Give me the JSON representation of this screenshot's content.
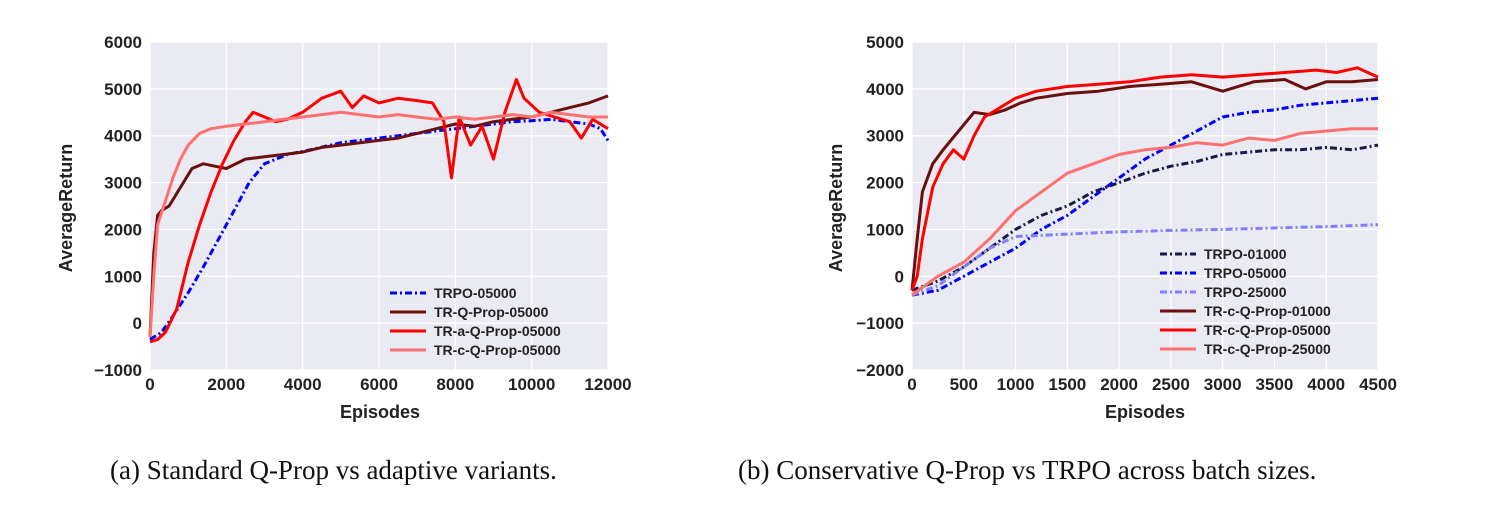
{
  "captions": {
    "a": "(a) Standard Q-Prop vs adaptive variants.",
    "b": "(b) Conservative Q-Prop vs TRPO across batch sizes."
  },
  "chart_data": [
    {
      "type": "line",
      "xlabel": "Episodes",
      "ylabel": "AverageReturn",
      "xlim": [
        0,
        12000
      ],
      "ylim": [
        -1000,
        6000
      ],
      "xticks": [
        0,
        2000,
        4000,
        6000,
        8000,
        10000,
        12000
      ],
      "yticks": [
        -1000,
        0,
        1000,
        2000,
        3000,
        4000,
        5000,
        6000
      ],
      "xtick_labels": [
        "0",
        "2000",
        "4000",
        "6000",
        "8000",
        "10000",
        "12000"
      ],
      "ytick_labels": [
        "−1000",
        "0",
        "1000",
        "2000",
        "3000",
        "4000",
        "5000",
        "6000"
      ],
      "grid": true,
      "legend_position": "lower-right",
      "series": [
        {
          "name": "TRPO-05000",
          "color": "#0000ff",
          "style": "dashdot",
          "x": [
            0,
            300,
            600,
            1000,
            1400,
            1800,
            2200,
            2600,
            3000,
            3600,
            4200,
            5000,
            6000,
            7000,
            7500,
            8000,
            8500,
            9000,
            9500,
            10000,
            10500,
            11000,
            11500,
            11800,
            12000
          ],
          "y": [
            -350,
            -200,
            150,
            650,
            1200,
            1800,
            2400,
            3000,
            3400,
            3600,
            3700,
            3850,
            3950,
            4050,
            4100,
            4150,
            4200,
            4250,
            4300,
            4320,
            4350,
            4300,
            4250,
            4150,
            3900
          ]
        },
        {
          "name": "TR-Q-Prop-05000",
          "color": "#6b0f0f",
          "style": "solid",
          "x": [
            0,
            100,
            200,
            300,
            500,
            800,
            1100,
            1400,
            1700,
            2000,
            2500,
            3000,
            3500,
            4000,
            4500,
            5000,
            5500,
            6000,
            6500,
            7000,
            7500,
            8000,
            8500,
            9000,
            9500,
            10000,
            10500,
            11000,
            11500,
            12000
          ],
          "y": [
            -300,
            1500,
            2300,
            2400,
            2500,
            2900,
            3300,
            3400,
            3350,
            3300,
            3500,
            3550,
            3600,
            3650,
            3750,
            3800,
            3850,
            3900,
            3950,
            4050,
            4150,
            4250,
            4200,
            4300,
            4350,
            4400,
            4500,
            4600,
            4700,
            4850
          ]
        },
        {
          "name": "TR-a-Q-Prop-05000",
          "color": "#ff0000",
          "style": "solid",
          "x": [
            0,
            200,
            400,
            700,
            1000,
            1300,
            1600,
            1900,
            2200,
            2500,
            2700,
            3000,
            3300,
            3600,
            4000,
            4500,
            5000,
            5300,
            5600,
            6000,
            6500,
            7000,
            7400,
            7700,
            7900,
            8100,
            8400,
            8700,
            9000,
            9300,
            9600,
            9800,
            10200,
            10600,
            11000,
            11300,
            11600,
            12000
          ],
          "y": [
            -400,
            -350,
            -200,
            300,
            1300,
            2100,
            2800,
            3400,
            3900,
            4300,
            4500,
            4400,
            4300,
            4350,
            4500,
            4800,
            4950,
            4600,
            4850,
            4700,
            4800,
            4750,
            4700,
            4300,
            3100,
            4400,
            3800,
            4200,
            3500,
            4500,
            5200,
            4800,
            4500,
            4400,
            4300,
            3950,
            4350,
            4150
          ]
        },
        {
          "name": "TR-c-Q-Prop-05000",
          "color": "#ff7070",
          "style": "solid",
          "x": [
            0,
            100,
            200,
            400,
            600,
            800,
            1000,
            1300,
            1600,
            2000,
            2500,
            3000,
            3500,
            4000,
            4500,
            5000,
            5500,
            6000,
            6500,
            7000,
            7500,
            8000,
            8500,
            9000,
            9500,
            10000,
            10500,
            11000,
            11500,
            12000
          ],
          "y": [
            -300,
            1000,
            2100,
            2600,
            3100,
            3500,
            3800,
            4050,
            4150,
            4200,
            4250,
            4300,
            4350,
            4400,
            4450,
            4500,
            4450,
            4400,
            4450,
            4400,
            4350,
            4400,
            4350,
            4400,
            4450,
            4400,
            4500,
            4450,
            4400,
            4400
          ]
        }
      ]
    },
    {
      "type": "line",
      "xlabel": "Episodes",
      "ylabel": "AverageReturn",
      "xlim": [
        0,
        4500
      ],
      "ylim": [
        -2000,
        5000
      ],
      "xticks": [
        0,
        500,
        1000,
        1500,
        2000,
        2500,
        3000,
        3500,
        4000,
        4500
      ],
      "yticks": [
        -2000,
        -1000,
        0,
        1000,
        2000,
        3000,
        4000,
        5000
      ],
      "xtick_labels": [
        "0",
        "500",
        "1000",
        "1500",
        "2000",
        "2500",
        "3000",
        "3500",
        "4000",
        "4500"
      ],
      "ytick_labels": [
        "−2000",
        "−1000",
        "0",
        "1000",
        "2000",
        "3000",
        "4000",
        "5000"
      ],
      "grid": true,
      "legend_position": "lower-right",
      "series": [
        {
          "name": "TRPO-01000",
          "color": "#1a1a4a",
          "style": "dashdot",
          "x": [
            0,
            250,
            500,
            750,
            1000,
            1250,
            1500,
            1750,
            2000,
            2250,
            2500,
            2750,
            3000,
            3250,
            3500,
            3750,
            4000,
            4250,
            4500
          ],
          "y": [
            -300,
            -100,
            200,
            600,
            1000,
            1300,
            1500,
            1800,
            2000,
            2200,
            2350,
            2450,
            2600,
            2650,
            2700,
            2700,
            2750,
            2700,
            2800
          ]
        },
        {
          "name": "TRPO-05000",
          "color": "#0000ff",
          "style": "dashdot",
          "x": [
            0,
            250,
            500,
            750,
            1000,
            1250,
            1500,
            1750,
            2000,
            2250,
            2500,
            2750,
            3000,
            3250,
            3500,
            3750,
            4000,
            4250,
            4500
          ],
          "y": [
            -400,
            -300,
            0,
            300,
            600,
            1000,
            1300,
            1700,
            2100,
            2500,
            2800,
            3100,
            3400,
            3500,
            3550,
            3650,
            3700,
            3750,
            3800
          ]
        },
        {
          "name": "TRPO-25000",
          "color": "#8080ff",
          "style": "dashdot",
          "x": [
            0,
            250,
            500,
            750,
            1000,
            1500,
            2000,
            2500,
            3000,
            3500,
            4000,
            4500
          ],
          "y": [
            -400,
            -200,
            200,
            600,
            850,
            900,
            950,
            980,
            1000,
            1030,
            1060,
            1100
          ]
        },
        {
          "name": "TR-c-Q-Prop-01000",
          "color": "#6b0f0f",
          "style": "solid",
          "x": [
            0,
            50,
            100,
            200,
            300,
            450,
            600,
            750,
            900,
            1050,
            1200,
            1500,
            1800,
            2100,
            2400,
            2700,
            3000,
            3300,
            3600,
            3800,
            4000,
            4250,
            4500
          ],
          "y": [
            -300,
            800,
            1800,
            2400,
            2700,
            3100,
            3500,
            3450,
            3550,
            3700,
            3800,
            3900,
            3950,
            4050,
            4100,
            4150,
            3950,
            4150,
            4200,
            4000,
            4150,
            4150,
            4200
          ]
        },
        {
          "name": "TR-c-Q-Prop-05000",
          "color": "#ff0000",
          "style": "solid",
          "x": [
            0,
            50,
            100,
            200,
            300,
            400,
            500,
            600,
            700,
            850,
            1000,
            1200,
            1500,
            1800,
            2100,
            2400,
            2700,
            3000,
            3300,
            3600,
            3900,
            4100,
            4300,
            4500
          ],
          "y": [
            -300,
            0,
            800,
            1900,
            2400,
            2700,
            2500,
            3000,
            3400,
            3600,
            3800,
            3950,
            4050,
            4100,
            4150,
            4250,
            4300,
            4250,
            4300,
            4350,
            4400,
            4350,
            4450,
            4250
          ]
        },
        {
          "name": "TR-c-Q-Prop-25000",
          "color": "#ff7070",
          "style": "solid",
          "x": [
            0,
            250,
            500,
            750,
            1000,
            1250,
            1500,
            1750,
            2000,
            2250,
            2500,
            2750,
            3000,
            3250,
            3500,
            3750,
            4000,
            4250,
            4500
          ],
          "y": [
            -400,
            0,
            300,
            800,
            1400,
            1800,
            2200,
            2400,
            2600,
            2700,
            2750,
            2850,
            2800,
            2950,
            2900,
            3050,
            3100,
            3150,
            3150
          ]
        }
      ]
    }
  ]
}
